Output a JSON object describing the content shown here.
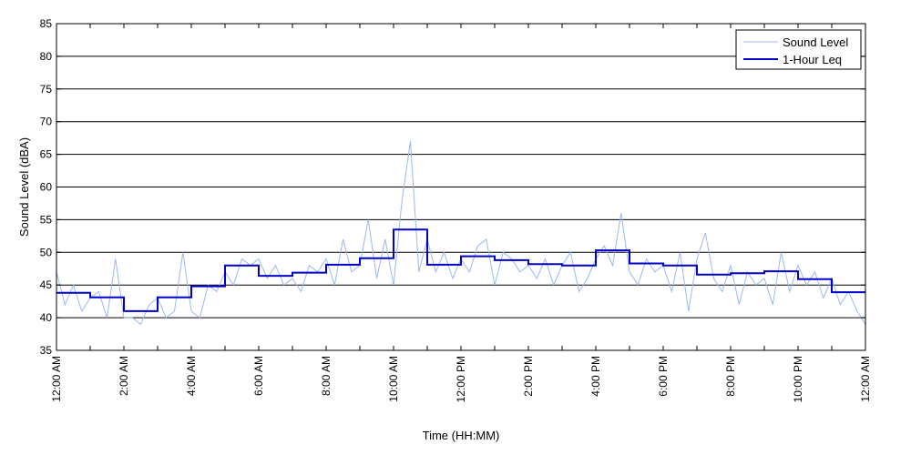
{
  "chart_data": {
    "type": "line",
    "xlabel": "Time (HH:MM)",
    "ylabel": "Sound Level (dBA)",
    "ylim": [
      35,
      85
    ],
    "yticks": [
      35,
      40,
      45,
      50,
      55,
      60,
      65,
      70,
      75,
      80,
      85
    ],
    "x_tick_labels": [
      "12:00 AM",
      "2:00 AM",
      "4:00 AM",
      "6:00 AM",
      "8:00 AM",
      "10:00 AM",
      "12:00 PM",
      "2:00 PM",
      "4:00 PM",
      "6:00 PM",
      "8:00 PM",
      "10:00 PM",
      "12:00 AM"
    ],
    "grid": "horizontal",
    "legend_position": "top-right",
    "series": [
      {
        "name": "Sound Level",
        "color": "#9bb8f0",
        "style": "thin",
        "hours": [
          0,
          0.25,
          0.5,
          0.75,
          1,
          1.25,
          1.5,
          1.75,
          2,
          2.25,
          2.5,
          2.75,
          3,
          3.25,
          3.5,
          3.75,
          4,
          4.25,
          4.5,
          4.75,
          5,
          5.25,
          5.5,
          5.75,
          6,
          6.25,
          6.5,
          6.75,
          7,
          7.25,
          7.5,
          7.75,
          8,
          8.25,
          8.5,
          8.75,
          9,
          9.25,
          9.5,
          9.75,
          10,
          10.25,
          10.5,
          10.75,
          11,
          11.25,
          11.5,
          11.75,
          12,
          12.25,
          12.5,
          12.75,
          13,
          13.25,
          13.5,
          13.75,
          14,
          14.25,
          14.5,
          14.75,
          15,
          15.25,
          15.5,
          15.75,
          16,
          16.25,
          16.5,
          16.75,
          17,
          17.25,
          17.5,
          17.75,
          18,
          18.25,
          18.5,
          18.75,
          19,
          19.25,
          19.5,
          19.75,
          20,
          20.25,
          20.5,
          20.75,
          21,
          21.25,
          21.5,
          21.75,
          22,
          22.25,
          22.5,
          22.75,
          23,
          23.25,
          23.5,
          23.75,
          24
        ],
        "values": [
          47,
          42,
          45,
          41,
          43,
          44,
          40,
          49,
          40,
          40,
          39,
          42,
          43,
          40,
          41,
          50,
          41,
          40,
          45,
          44,
          47,
          45,
          49,
          48,
          49,
          46,
          48,
          45,
          46,
          44,
          48,
          47,
          49,
          45,
          52,
          47,
          48,
          55,
          46,
          52,
          45,
          58,
          67,
          47,
          52,
          47,
          50,
          46,
          49,
          47,
          51,
          52,
          45,
          50,
          49,
          47,
          48,
          46,
          49,
          45,
          48,
          50,
          44,
          46,
          49,
          51,
          48,
          56,
          47,
          45,
          49,
          47,
          48,
          44,
          50,
          41,
          49,
          53,
          46,
          44,
          48,
          42,
          47,
          45,
          46,
          42,
          50,
          44,
          48,
          45,
          47,
          43,
          46,
          42,
          44,
          41,
          39
        ]
      },
      {
        "name": "1-Hour Leq",
        "color": "#0000c8",
        "style": "step",
        "values": [
          43.8,
          43.1,
          41.0,
          43.1,
          44.8,
          48.0,
          46.4,
          46.9,
          48.1,
          49.1,
          53.5,
          48.1,
          49.4,
          48.8,
          48.2,
          48.0,
          50.3,
          48.3,
          48.0,
          46.6,
          46.8,
          47.1,
          45.9,
          43.9
        ]
      }
    ]
  }
}
